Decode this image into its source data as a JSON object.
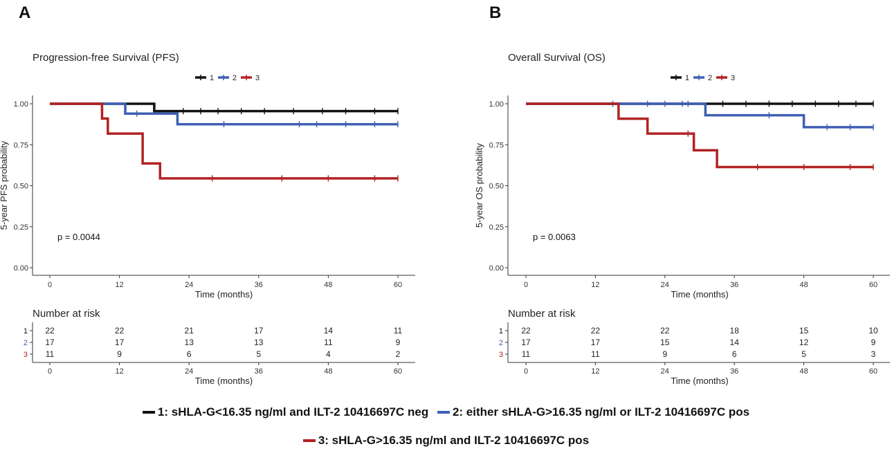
{
  "panels": [
    {
      "letter": "A",
      "title": "Progression-free Survival (PFS)",
      "ylabel": "5-year PFS probability",
      "xlabel": "Time (months)",
      "pvalue": "p = 0.0044",
      "legend_labels": [
        "1",
        "2",
        "3"
      ],
      "risk_title": "Number at risk",
      "risk_xlabel": "Time (months)",
      "risk_group_labels": [
        "1",
        "2",
        "3"
      ],
      "risk_table": [
        [
          "22",
          "22",
          "21",
          "17",
          "14",
          "11"
        ],
        [
          "17",
          "17",
          "13",
          "13",
          "11",
          "9"
        ],
        [
          "11",
          "9",
          "6",
          "5",
          "4",
          "2"
        ]
      ]
    },
    {
      "letter": "B",
      "title": "Overall Survival (OS)",
      "ylabel": "5-year OS probability",
      "xlabel": "Time (months)",
      "pvalue": "p = 0.0063",
      "legend_labels": [
        "1",
        "2",
        "3"
      ],
      "risk_title": "Number at risk",
      "risk_xlabel": "Time (months)",
      "risk_group_labels": [
        "1",
        "2",
        "3"
      ],
      "risk_table": [
        [
          "22",
          "22",
          "22",
          "18",
          "15",
          "10"
        ],
        [
          "17",
          "17",
          "15",
          "14",
          "12",
          "9"
        ],
        [
          "11",
          "11",
          "9",
          "6",
          "5",
          "3"
        ]
      ]
    }
  ],
  "chart_data": [
    {
      "type": "line",
      "subtype": "kaplan-meier",
      "title": "Progression-free Survival (PFS)",
      "xlabel": "Time (months)",
      "ylabel": "5-year PFS probability",
      "xlim": [
        0,
        60
      ],
      "ylim": [
        0,
        1
      ],
      "xticks": [
        "0",
        "12",
        "24",
        "36",
        "48",
        "60"
      ],
      "yticks": [
        "0.00",
        "0.25",
        "0.50",
        "0.75",
        "1.00"
      ],
      "series": [
        {
          "name": "1",
          "color": "#111111",
          "steps": [
            [
              0,
              1.0
            ],
            [
              18,
              0.955
            ],
            [
              60,
              0.955
            ]
          ],
          "censor_x": [
            23,
            26,
            29,
            33,
            37,
            42,
            47,
            51,
            56,
            60
          ]
        },
        {
          "name": "2",
          "color": "#3f5fb5",
          "steps": [
            [
              0,
              1.0
            ],
            [
              13,
              0.94
            ],
            [
              22,
              0.875
            ],
            [
              60,
              0.875
            ]
          ],
          "censor_x": [
            15,
            30,
            43,
            46,
            51,
            56,
            60
          ]
        },
        {
          "name": "3",
          "color": "#b22222",
          "steps": [
            [
              0,
              1.0
            ],
            [
              9,
              0.91
            ],
            [
              10,
              0.818
            ],
            [
              16,
              0.636
            ],
            [
              19,
              0.545
            ],
            [
              60,
              0.545
            ]
          ],
          "censor_x": [
            28,
            40,
            48,
            56,
            60
          ]
        }
      ]
    },
    {
      "type": "line",
      "subtype": "kaplan-meier",
      "title": "Overall Survival (OS)",
      "xlabel": "Time (months)",
      "ylabel": "5-year OS probability",
      "xlim": [
        0,
        60
      ],
      "ylim": [
        0,
        1
      ],
      "xticks": [
        "0",
        "12",
        "24",
        "36",
        "48",
        "60"
      ],
      "yticks": [
        "0.00",
        "0.25",
        "0.50",
        "0.75",
        "1.00"
      ],
      "series": [
        {
          "name": "1",
          "color": "#111111",
          "steps": [
            [
              0,
              1.0
            ],
            [
              60,
              1.0
            ]
          ],
          "censor_x": [
            34,
            38,
            42,
            46,
            50,
            54,
            57,
            60
          ]
        },
        {
          "name": "2",
          "color": "#3f5fb5",
          "steps": [
            [
              0,
              1.0
            ],
            [
              31,
              0.93
            ],
            [
              48,
              0.857
            ],
            [
              60,
              0.857
            ]
          ],
          "censor_x": [
            15,
            21,
            24,
            27,
            28,
            42,
            52,
            56,
            60
          ]
        },
        {
          "name": "3",
          "color": "#b22222",
          "steps": [
            [
              0,
              1.0
            ],
            [
              16,
              0.909
            ],
            [
              21,
              0.818
            ],
            [
              29,
              0.716
            ],
            [
              33,
              0.614
            ],
            [
              60,
              0.614
            ]
          ],
          "censor_x": [
            28,
            40,
            48,
            56,
            60
          ]
        }
      ]
    }
  ],
  "footer_legend": [
    {
      "label": "1:  sHLA-G<16.35 ng/ml and ILT-2 10416697C neg",
      "color": "#111111"
    },
    {
      "label": "2: either sHLA-G>16.35 ng/ml or ILT-2 10416697C pos",
      "color": "#3f5fb5"
    },
    {
      "label": "3: sHLA-G>16.35 ng/ml and ILT-2 10416697C pos",
      "color": "#b22222"
    }
  ]
}
